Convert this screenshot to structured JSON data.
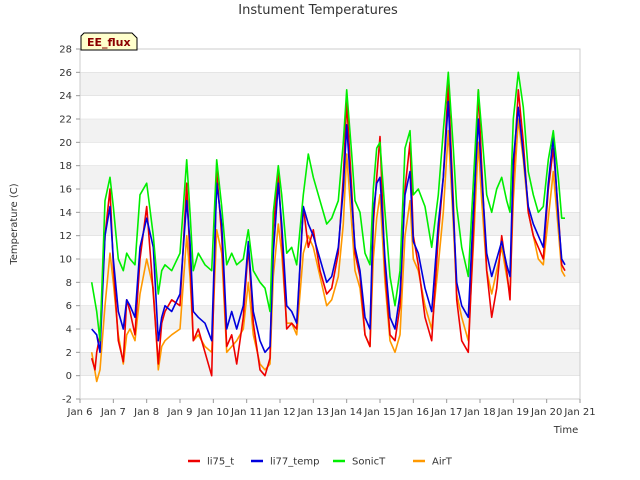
{
  "chart_data": {
    "type": "line",
    "title": "Instument Temperatures",
    "xlabel": "Time",
    "ylabel": "Temperature (C)",
    "badge": "EE_flux",
    "xlim": [
      6,
      21
    ],
    "ylim": [
      -2,
      28
    ],
    "xticks": [
      {
        "value": 6,
        "label": "Jan 6"
      },
      {
        "value": 7,
        "label": "Jan 7"
      },
      {
        "value": 8,
        "label": "Jan 8"
      },
      {
        "value": 9,
        "label": "Jan 9"
      },
      {
        "value": 10,
        "label": "Jan 10"
      },
      {
        "value": 11,
        "label": "Jan 11"
      },
      {
        "value": 12,
        "label": "Jan 12"
      },
      {
        "value": 13,
        "label": "Jan 13"
      },
      {
        "value": 14,
        "label": "Jan 14"
      },
      {
        "value": 15,
        "label": "Jan 15"
      },
      {
        "value": 16,
        "label": "Jan 16"
      },
      {
        "value": 17,
        "label": "Jan 17"
      },
      {
        "value": 18,
        "label": "Jan 18"
      },
      {
        "value": 19,
        "label": "Jan 19"
      },
      {
        "value": 20,
        "label": "Jan 20"
      },
      {
        "value": 21,
        "label": "Jan 21"
      }
    ],
    "yticks": [
      -2,
      0,
      2,
      4,
      6,
      8,
      10,
      12,
      14,
      16,
      18,
      20,
      22,
      24,
      26,
      28
    ],
    "legend_position": "bottom-center",
    "band_color": "#f2f2f2",
    "grid_color": "#dddddd",
    "series": [
      {
        "name": "li75_t",
        "color": "#ee0000",
        "x": [
          6.35,
          6.45,
          6.5,
          6.6,
          6.75,
          6.9,
          7.0,
          7.15,
          7.3,
          7.4,
          7.5,
          7.65,
          7.8,
          8.0,
          8.2,
          8.35,
          8.45,
          8.55,
          8.75,
          9.0,
          9.2,
          9.3,
          9.4,
          9.55,
          9.75,
          9.95,
          10.1,
          10.25,
          10.4,
          10.55,
          10.7,
          10.9,
          11.05,
          11.2,
          11.4,
          11.55,
          11.7,
          11.8,
          11.95,
          12.05,
          12.2,
          12.35,
          12.5,
          12.7,
          12.85,
          13.0,
          13.2,
          13.4,
          13.55,
          13.75,
          13.9,
          14.0,
          14.15,
          14.25,
          14.4,
          14.55,
          14.7,
          14.8,
          14.9,
          15.0,
          15.15,
          15.3,
          15.45,
          15.6,
          15.75,
          15.9,
          16.0,
          16.15,
          16.35,
          16.55,
          16.75,
          16.9,
          17.05,
          17.2,
          17.3,
          17.45,
          17.65,
          17.8,
          17.95,
          18.05,
          18.2,
          18.35,
          18.5,
          18.65,
          18.8,
          18.9,
          19.0,
          19.15,
          19.3,
          19.45,
          19.6,
          19.75,
          19.9,
          20.05,
          20.2,
          20.35,
          20.45,
          20.55
        ],
        "y": [
          1.5,
          0.5,
          2.0,
          3.5,
          12.0,
          16.0,
          9.5,
          3.0,
          1.2,
          6.5,
          5.5,
          3.5,
          10.0,
          14.5,
          7.0,
          1.0,
          4.5,
          5.5,
          6.5,
          6.0,
          16.5,
          10.0,
          3.0,
          4.0,
          2.0,
          0.0,
          17.5,
          12.0,
          2.5,
          3.5,
          1.0,
          5.0,
          11.0,
          4.5,
          0.5,
          0.0,
          1.5,
          12.5,
          17.5,
          12.0,
          4.0,
          4.5,
          4.0,
          14.5,
          11.0,
          12.5,
          9.0,
          7.0,
          7.5,
          10.5,
          17.0,
          23.5,
          16.0,
          10.5,
          8.5,
          3.5,
          2.5,
          13.0,
          17.0,
          20.5,
          9.0,
          3.5,
          3.0,
          6.0,
          16.0,
          20.0,
          12.0,
          9.5,
          5.0,
          3.0,
          12.0,
          17.0,
          25.0,
          15.0,
          6.5,
          3.0,
          2.0,
          12.0,
          24.5,
          18.0,
          9.0,
          5.0,
          7.5,
          12.0,
          9.0,
          6.5,
          17.0,
          24.5,
          20.0,
          14.0,
          12.0,
          11.0,
          10.0,
          16.0,
          19.5,
          14.0,
          9.5,
          9.0
        ]
      },
      {
        "name": "li77_temp",
        "color": "#0000dd",
        "x": [
          6.35,
          6.5,
          6.6,
          6.75,
          6.9,
          7.0,
          7.15,
          7.3,
          7.4,
          7.5,
          7.65,
          7.8,
          8.0,
          8.2,
          8.35,
          8.45,
          8.55,
          8.75,
          9.0,
          9.2,
          9.3,
          9.4,
          9.55,
          9.75,
          9.95,
          10.1,
          10.25,
          10.4,
          10.55,
          10.7,
          10.9,
          11.05,
          11.2,
          11.4,
          11.55,
          11.7,
          11.8,
          11.95,
          12.05,
          12.2,
          12.35,
          12.5,
          12.7,
          12.85,
          13.0,
          13.2,
          13.4,
          13.55,
          13.75,
          13.9,
          14.0,
          14.15,
          14.25,
          14.4,
          14.55,
          14.7,
          14.8,
          14.9,
          15.0,
          15.15,
          15.3,
          15.45,
          15.6,
          15.75,
          15.9,
          16.0,
          16.15,
          16.35,
          16.55,
          16.75,
          16.9,
          17.05,
          17.2,
          17.3,
          17.45,
          17.65,
          17.8,
          17.95,
          18.05,
          18.2,
          18.35,
          18.5,
          18.65,
          18.8,
          18.9,
          19.0,
          19.15,
          19.3,
          19.45,
          19.6,
          19.75,
          19.9,
          20.05,
          20.2,
          20.35,
          20.45,
          20.55
        ],
        "y": [
          4.0,
          3.5,
          2.0,
          12.0,
          14.5,
          10.0,
          5.5,
          4.0,
          6.5,
          6.0,
          5.0,
          11.0,
          13.5,
          11.0,
          3.0,
          5.0,
          6.0,
          5.5,
          7.0,
          15.0,
          11.5,
          5.5,
          5.0,
          4.5,
          3.0,
          16.5,
          13.0,
          4.0,
          5.5,
          4.0,
          6.0,
          11.5,
          5.5,
          3.0,
          2.0,
          2.5,
          10.5,
          16.5,
          13.0,
          6.0,
          5.5,
          4.5,
          14.5,
          13.0,
          12.0,
          10.0,
          8.0,
          8.5,
          11.0,
          16.0,
          21.5,
          15.0,
          11.0,
          9.0,
          5.0,
          4.0,
          14.0,
          16.5,
          17.0,
          10.0,
          5.0,
          4.0,
          7.0,
          15.5,
          17.5,
          11.5,
          10.5,
          7.5,
          5.5,
          13.0,
          17.0,
          23.5,
          14.0,
          8.0,
          6.0,
          5.0,
          14.0,
          22.0,
          17.0,
          10.5,
          8.5,
          10.0,
          11.5,
          9.5,
          8.5,
          18.5,
          23.0,
          19.0,
          14.5,
          13.0,
          12.0,
          11.0,
          16.5,
          20.5,
          13.5,
          10.0,
          9.5
        ]
      },
      {
        "name": "SonicT",
        "color": "#00ee00",
        "x": [
          6.35,
          6.5,
          6.6,
          6.75,
          6.9,
          7.0,
          7.15,
          7.3,
          7.4,
          7.5,
          7.65,
          7.8,
          8.0,
          8.2,
          8.35,
          8.45,
          8.55,
          8.75,
          9.0,
          9.2,
          9.3,
          9.4,
          9.55,
          9.75,
          9.95,
          10.1,
          10.25,
          10.4,
          10.55,
          10.7,
          10.9,
          11.05,
          11.2,
          11.4,
          11.55,
          11.7,
          11.8,
          11.95,
          12.05,
          12.2,
          12.35,
          12.5,
          12.7,
          12.85,
          13.0,
          13.2,
          13.4,
          13.55,
          13.75,
          13.9,
          14.0,
          14.15,
          14.25,
          14.4,
          14.55,
          14.7,
          14.8,
          14.9,
          15.0,
          15.15,
          15.3,
          15.45,
          15.6,
          15.75,
          15.9,
          16.0,
          16.15,
          16.35,
          16.55,
          16.75,
          16.9,
          17.05,
          17.2,
          17.3,
          17.45,
          17.65,
          17.8,
          17.95,
          18.05,
          18.2,
          18.35,
          18.5,
          18.65,
          18.8,
          18.9,
          19.0,
          19.15,
          19.3,
          19.45,
          19.6,
          19.75,
          19.9,
          20.05,
          20.2,
          20.35,
          20.45,
          20.55
        ],
        "y": [
          8.0,
          5.5,
          3.0,
          15.0,
          17.0,
          14.5,
          10.0,
          9.0,
          10.5,
          10.0,
          9.5,
          15.5,
          16.5,
          12.0,
          7.0,
          9.0,
          9.5,
          9.0,
          10.5,
          18.5,
          14.0,
          9.0,
          10.5,
          9.5,
          9.0,
          18.5,
          14.5,
          9.5,
          10.5,
          9.5,
          10.0,
          12.5,
          9.0,
          8.0,
          7.5,
          5.5,
          14.0,
          18.0,
          15.5,
          10.5,
          11.0,
          9.5,
          15.5,
          19.0,
          17.0,
          15.0,
          13.0,
          13.5,
          15.0,
          20.0,
          24.5,
          19.0,
          15.0,
          14.0,
          10.5,
          9.5,
          16.0,
          19.5,
          20.0,
          14.0,
          8.5,
          6.0,
          9.0,
          19.5,
          21.0,
          15.5,
          16.0,
          14.5,
          11.0,
          15.5,
          21.0,
          26.0,
          19.5,
          14.5,
          11.0,
          8.5,
          16.5,
          24.5,
          21.0,
          15.5,
          14.0,
          16.0,
          17.0,
          15.0,
          14.0,
          22.0,
          26.0,
          23.0,
          17.5,
          15.5,
          14.0,
          14.5,
          18.5,
          21.0,
          17.0,
          13.5,
          13.5
        ]
      },
      {
        "name": "AirT",
        "color": "#ff9900",
        "x": [
          6.35,
          6.5,
          6.6,
          6.75,
          6.9,
          7.0,
          7.15,
          7.3,
          7.4,
          7.5,
          7.65,
          7.8,
          8.0,
          8.2,
          8.35,
          8.45,
          8.55,
          8.75,
          9.0,
          9.2,
          9.3,
          9.4,
          9.55,
          9.75,
          9.95,
          10.1,
          10.25,
          10.4,
          10.55,
          10.7,
          10.9,
          11.05,
          11.2,
          11.4,
          11.55,
          11.7,
          11.8,
          11.95,
          12.05,
          12.2,
          12.35,
          12.5,
          12.7,
          12.85,
          13.0,
          13.2,
          13.4,
          13.55,
          13.75,
          13.9,
          14.0,
          14.15,
          14.25,
          14.4,
          14.55,
          14.7,
          14.8,
          14.9,
          15.0,
          15.15,
          15.3,
          15.45,
          15.6,
          15.75,
          15.9,
          16.0,
          16.15,
          16.35,
          16.55,
          16.75,
          16.9,
          17.05,
          17.2,
          17.3,
          17.45,
          17.65,
          17.8,
          17.95,
          18.05,
          18.2,
          18.35,
          18.5,
          18.65,
          18.8,
          18.9,
          19.0,
          19.15,
          19.3,
          19.45,
          19.6,
          19.75,
          19.9,
          20.05,
          20.2,
          20.35,
          20.45,
          20.55
        ],
        "y": [
          2.0,
          -0.5,
          0.5,
          6.0,
          10.5,
          8.0,
          3.5,
          1.0,
          3.5,
          4.0,
          3.0,
          7.0,
          10.0,
          7.5,
          0.5,
          2.5,
          3.0,
          3.5,
          4.0,
          12.0,
          8.5,
          3.0,
          3.5,
          2.5,
          2.0,
          12.5,
          10.5,
          2.0,
          2.5,
          3.0,
          4.0,
          8.0,
          3.5,
          1.0,
          0.5,
          1.0,
          8.5,
          13.0,
          10.5,
          4.5,
          4.5,
          3.5,
          10.5,
          12.0,
          11.0,
          8.5,
          6.0,
          6.5,
          8.5,
          13.0,
          19.0,
          13.0,
          9.0,
          7.5,
          3.5,
          2.5,
          10.0,
          13.5,
          15.5,
          8.0,
          3.0,
          2.0,
          3.5,
          12.0,
          15.0,
          10.0,
          9.0,
          6.0,
          4.0,
          9.5,
          14.0,
          21.0,
          13.0,
          7.0,
          5.0,
          3.0,
          11.0,
          20.0,
          15.0,
          9.0,
          7.0,
          9.0,
          11.0,
          8.5,
          7.0,
          15.0,
          22.0,
          18.5,
          14.0,
          12.0,
          10.0,
          9.5,
          13.5,
          17.5,
          12.5,
          9.0,
          8.5
        ]
      }
    ]
  }
}
